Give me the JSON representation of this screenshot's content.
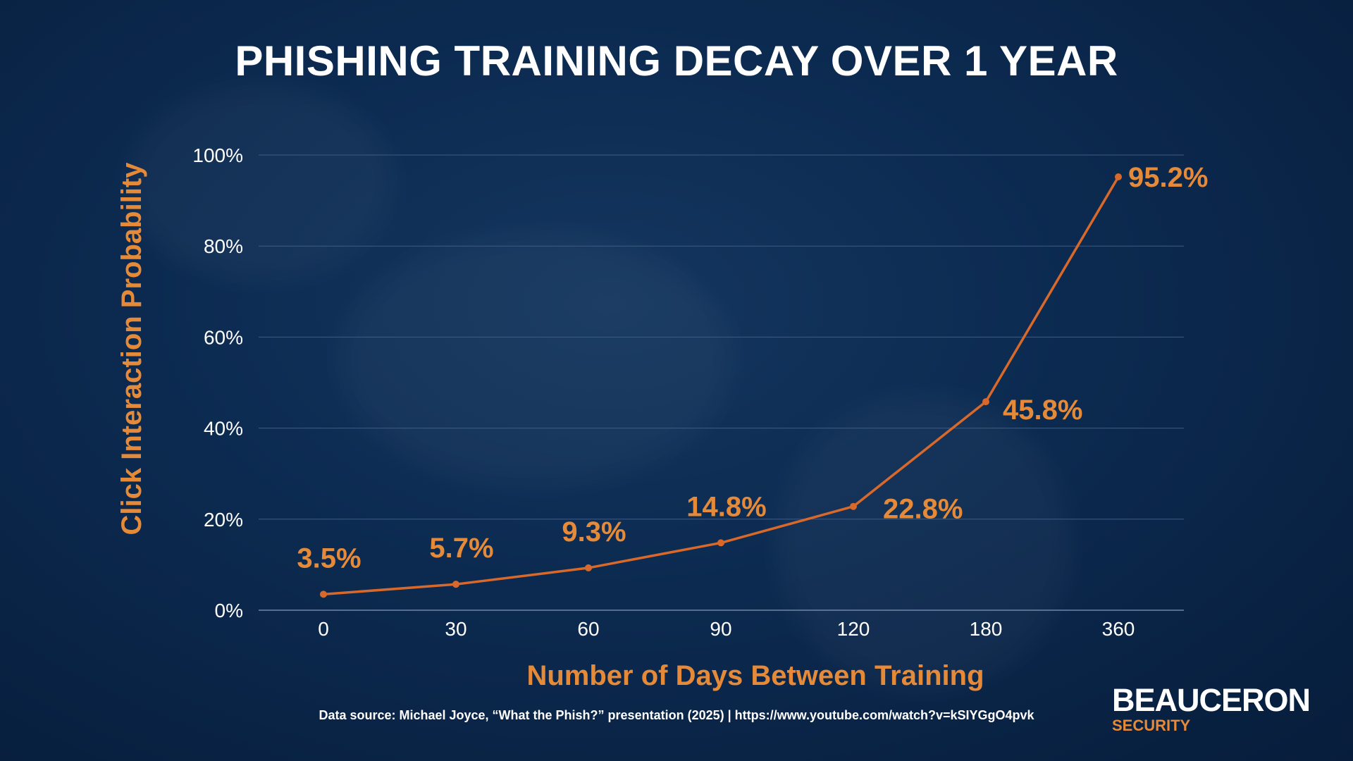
{
  "title": "PHISHING TRAINING DECAY OVER 1 YEAR",
  "footer": {
    "source": "Data source: Michael Joyce, “What the Phish?” presentation (2025) | https://www.youtube.com/watch?v=kSIYGgO4pvk"
  },
  "brand": {
    "name": "BEAUCERON",
    "sub": "SECURITY"
  },
  "colors": {
    "line": "#d9692a",
    "label": "#e58a38",
    "grid": "#3e5c84",
    "axis_text": "#ffffff"
  },
  "chart_data": {
    "type": "line",
    "title": "PHISHING TRAINING DECAY OVER 1 YEAR",
    "xlabel": "Number of Days Between Training",
    "ylabel": "Click Interaction Probability",
    "categories": [
      "0",
      "30",
      "60",
      "90",
      "120",
      "180",
      "360"
    ],
    "values": [
      3.5,
      5.7,
      9.3,
      14.8,
      22.8,
      45.8,
      95.2
    ],
    "data_labels": [
      "3.5%",
      "5.7%",
      "9.3%",
      "14.8%",
      "22.8%",
      "45.8%",
      "95.2%"
    ],
    "yticks": [
      "0%",
      "20%",
      "40%",
      "60%",
      "80%",
      "100%"
    ],
    "ylim": [
      0,
      100
    ],
    "grid": true
  }
}
